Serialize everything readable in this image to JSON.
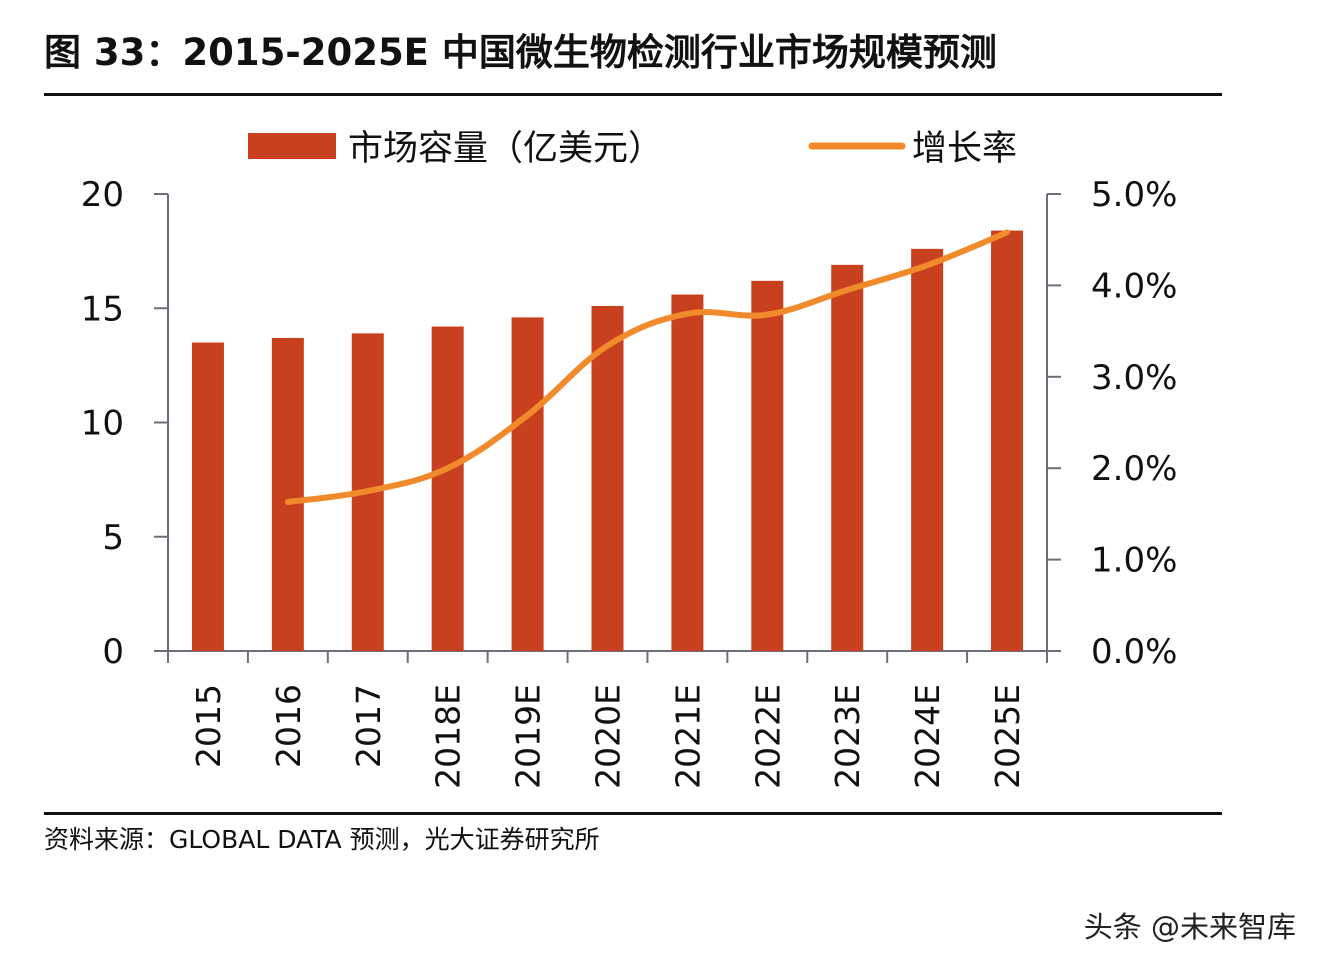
{
  "header": {
    "title": "图 33：2015-2025E 中国微生物检测行业市场规模预测"
  },
  "footer": {
    "source": "资料来源：GLOBAL DATA 预测，光大证券研究所",
    "watermark": "头条 @未来智库"
  },
  "colors": {
    "bar": "#C8401E",
    "line": "#F08A2A",
    "axis": "#6b6f7a",
    "text": "#111111"
  },
  "chart_data": {
    "type": "bar",
    "title": "2015-2025E 中国微生物检测行业市场规模预测",
    "categories": [
      "2015",
      "2016",
      "2017",
      "2018E",
      "2019E",
      "2020E",
      "2021E",
      "2022E",
      "2023E",
      "2024E",
      "2025E"
    ],
    "series": [
      {
        "name": "市场容量（亿美元）",
        "type": "bar",
        "axis": "left",
        "values": [
          13.5,
          13.7,
          13.9,
          14.2,
          14.6,
          15.1,
          15.6,
          16.2,
          16.9,
          17.6,
          18.4
        ]
      },
      {
        "name": "增长率",
        "type": "line",
        "axis": "right",
        "unit": "%",
        "values": [
          null,
          1.63,
          1.75,
          2.0,
          2.58,
          3.34,
          3.69,
          3.68,
          3.95,
          4.22,
          4.58
        ]
      }
    ],
    "y_left": {
      "min": 0,
      "max": 20,
      "ticks": [
        0,
        5,
        10,
        15,
        20
      ],
      "tick_labels": [
        "0",
        "5",
        "10",
        "15",
        "20"
      ]
    },
    "y_right": {
      "min": 0,
      "max": 5,
      "ticks": [
        0,
        1,
        2,
        3,
        4,
        5
      ],
      "tick_labels": [
        "0.0%",
        "1.0%",
        "2.0%",
        "3.0%",
        "4.0%",
        "5.0%"
      ]
    },
    "xlabel": "",
    "ylabel": "",
    "legend": {
      "position": "top",
      "entries": [
        "市场容量（亿美元）",
        "增长率"
      ]
    },
    "grid": false,
    "x_tick_rotation": "vertical"
  }
}
